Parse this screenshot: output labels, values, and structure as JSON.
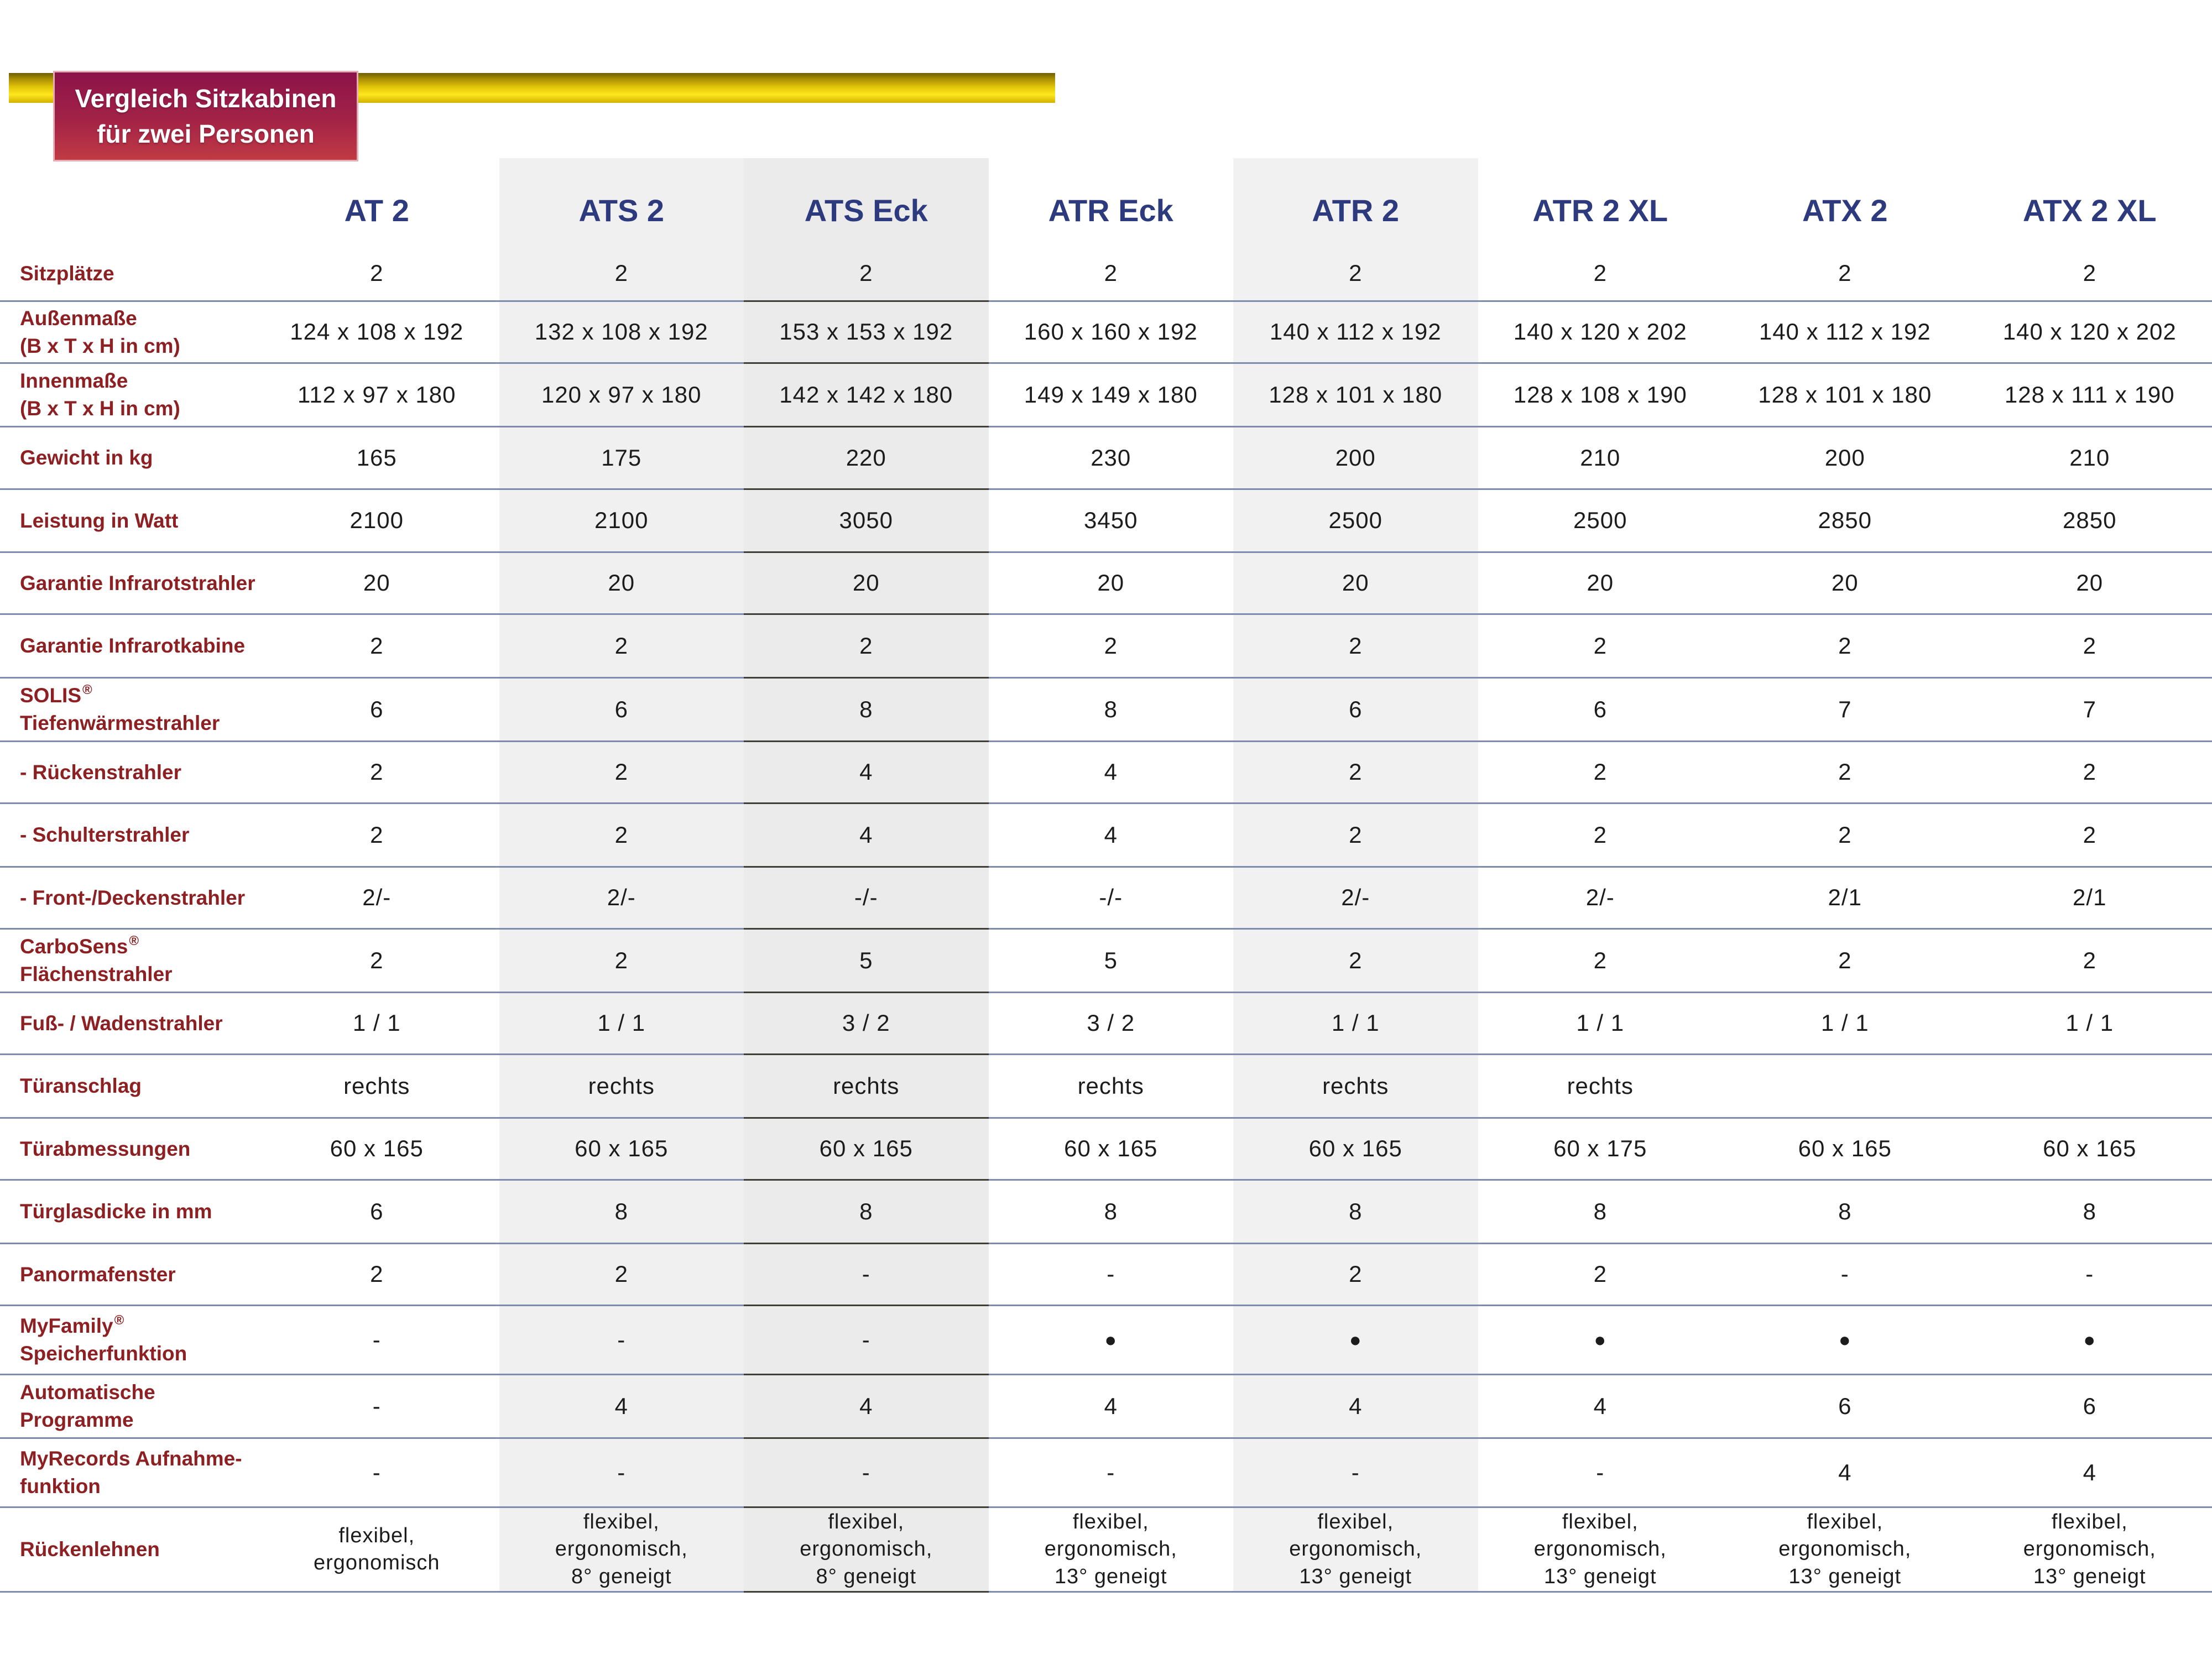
{
  "title_badge": {
    "line1": "Vergleich Sitzkabinen",
    "line2": "für zwei Personen"
  },
  "columns": [
    "AT 2",
    "ATS 2",
    "ATS Eck",
    "ATR Eck",
    "ATR 2",
    "ATR 2 XL",
    "ATX 2",
    "ATX 2 XL"
  ],
  "highlighted_columns": [
    "ATS 2",
    "ATS Eck",
    "ATR 2"
  ],
  "rows": [
    {
      "id": "sitzplaetze",
      "label_lines": [
        "Sitzplätze"
      ],
      "sup": null,
      "values": [
        "2",
        "2",
        "2",
        "2",
        "2",
        "2",
        "2",
        "2"
      ]
    },
    {
      "id": "aussenmasse",
      "label_lines": [
        "Außenmaße",
        "(B x T x H in cm)"
      ],
      "sup": null,
      "values": [
        "124 x 108 x 192",
        "132 x 108 x 192",
        "153 x 153 x 192",
        "160 x 160 x 192",
        "140 x 112 x 192",
        "140 x 120 x 202",
        "140 x 112 x 192",
        "140 x 120 x 202"
      ]
    },
    {
      "id": "innenmasse",
      "label_lines": [
        "Innenmaße",
        "(B x T x H in cm)"
      ],
      "sup": null,
      "values": [
        "112 x 97 x 180",
        "120 x 97 x 180",
        "142 x 142 x 180",
        "149 x 149 x 180",
        "128 x 101 x 180",
        "128 x 108 x 190",
        "128 x 101 x 180",
        "128 x 111 x 190"
      ]
    },
    {
      "id": "gewicht",
      "label_lines": [
        "Gewicht in kg"
      ],
      "sup": null,
      "values": [
        "165",
        "175",
        "220",
        "230",
        "200",
        "210",
        "200",
        "210"
      ]
    },
    {
      "id": "leistung",
      "label_lines": [
        "Leistung in Watt"
      ],
      "sup": null,
      "values": [
        "2100",
        "2100",
        "3050",
        "3450",
        "2500",
        "2500",
        "2850",
        "2850"
      ]
    },
    {
      "id": "garantie_infrarotstrahler",
      "label_lines": [
        "Garantie Infrarotstrahler"
      ],
      "sup": null,
      "values": [
        "20",
        "20",
        "20",
        "20",
        "20",
        "20",
        "20",
        "20"
      ]
    },
    {
      "id": "garantie_infrarotkabine",
      "label_lines": [
        "Garantie Infrarotkabine"
      ],
      "sup": null,
      "values": [
        "2",
        "2",
        "2",
        "2",
        "2",
        "2",
        "2",
        "2"
      ]
    },
    {
      "id": "solis_tiefenwaermestrahler",
      "label_lines": [
        "SOLIS",
        "Tiefenwärmestrahler"
      ],
      "sup": "®",
      "values": [
        "6",
        "6",
        "8",
        "8",
        "6",
        "6",
        "7",
        "7"
      ]
    },
    {
      "id": "rueckenstrahler",
      "label_lines": [
        "- Rückenstrahler"
      ],
      "sup": null,
      "values": [
        "2",
        "2",
        "4",
        "4",
        "2",
        "2",
        "2",
        "2"
      ]
    },
    {
      "id": "schulterstrahler",
      "label_lines": [
        "- Schulterstrahler"
      ],
      "sup": null,
      "values": [
        "2",
        "2",
        "4",
        "4",
        "2",
        "2",
        "2",
        "2"
      ]
    },
    {
      "id": "front_deckenstrahler",
      "label_lines": [
        "- Front-/Deckenstrahler"
      ],
      "sup": null,
      "values": [
        "2/-",
        "2/-",
        "-/-",
        "-/-",
        "2/-",
        "2/-",
        "2/1",
        "2/1"
      ]
    },
    {
      "id": "carbosens_flaechenstrahler",
      "label_lines": [
        "CarboSens",
        "Flächenstrahler"
      ],
      "sup": "®",
      "values": [
        "2",
        "2",
        "5",
        "5",
        "2",
        "2",
        "2",
        "2"
      ]
    },
    {
      "id": "fuss_wadenstrahler",
      "label_lines": [
        "Fuß- / Wadenstrahler"
      ],
      "sup": null,
      "values": [
        "1 / 1",
        "1 / 1",
        "3 / 2",
        "3 / 2",
        "1 / 1",
        "1 / 1",
        "1 / 1",
        "1 / 1"
      ]
    },
    {
      "id": "tueranschlag",
      "label_lines": [
        "Türanschlag"
      ],
      "sup": null,
      "values": [
        "rechts",
        "rechts",
        "rechts",
        "rechts",
        "rechts",
        "rechts",
        "",
        ""
      ]
    },
    {
      "id": "tuerabmessungen",
      "label_lines": [
        "Türabmessungen"
      ],
      "sup": null,
      "values": [
        "60 x 165",
        "60 x 165",
        "60 x 165",
        "60 x 165",
        "60 x 165",
        "60 x 175",
        "60 x 165",
        "60 x 165"
      ]
    },
    {
      "id": "tuerglasdicke",
      "label_lines": [
        "Türglasdicke in mm"
      ],
      "sup": null,
      "values": [
        "6",
        "8",
        "8",
        "8",
        "8",
        "8",
        "8",
        "8"
      ]
    },
    {
      "id": "panormafenster",
      "label_lines": [
        "Panormafenster"
      ],
      "sup": null,
      "values": [
        "2",
        "2",
        "-",
        "-",
        "2",
        "2",
        "-",
        "-"
      ]
    },
    {
      "id": "myfamily_speicherfunktion",
      "label_lines": [
        "MyFamily",
        "Speicherfunktion"
      ],
      "sup": "®",
      "values": [
        "-",
        "-",
        "-",
        "●",
        "●",
        "●",
        "●",
        "●"
      ]
    },
    {
      "id": "automatische_programme",
      "label_lines": [
        "Automatische",
        "Programme"
      ],
      "sup": null,
      "values": [
        "-",
        "4",
        "4",
        "4",
        "4",
        "4",
        "6",
        "6"
      ]
    },
    {
      "id": "myrecords_aufnahmefunktion",
      "label_lines": [
        "MyRecords Aufnahme-",
        "funktion"
      ],
      "sup": null,
      "values": [
        "-",
        "-",
        "-",
        "-",
        "-",
        "-",
        "4",
        "4"
      ]
    },
    {
      "id": "rueckenlehnen",
      "label_lines": [
        "Rückenlehnen"
      ],
      "sup": null,
      "values": [
        "flexibel,\nergonomisch",
        "flexibel,\nergonomisch,\n8° geneigt",
        "flexibel,\nergonomisch,\n8° geneigt",
        "flexibel,\nergonomisch,\n13° geneigt",
        "flexibel,\nergonomisch,\n13° geneigt",
        "flexibel,\nergonomisch,\n13° geneigt",
        "flexibel,\nergonomisch,\n13° geneigt",
        "flexibel,\nergonomisch,\n13° geneigt"
      ]
    }
  ],
  "colors": {
    "badge_gradient_top": "#8c1349",
    "badge_gradient_bottom": "#c03a44",
    "gold_bar": "#e8ca08",
    "row_label_red": "#8c2022",
    "column_header_navy": "#2d3a7d",
    "value_text": "#1c1c1c",
    "separator_blue": "#7e8bb0",
    "separator_dark": "#3f3f38",
    "col_gray_ats2": "#f0f0f0",
    "col_gray_atseck": "#ebebeb",
    "col_gray_atr2": "#f1f1f1"
  }
}
